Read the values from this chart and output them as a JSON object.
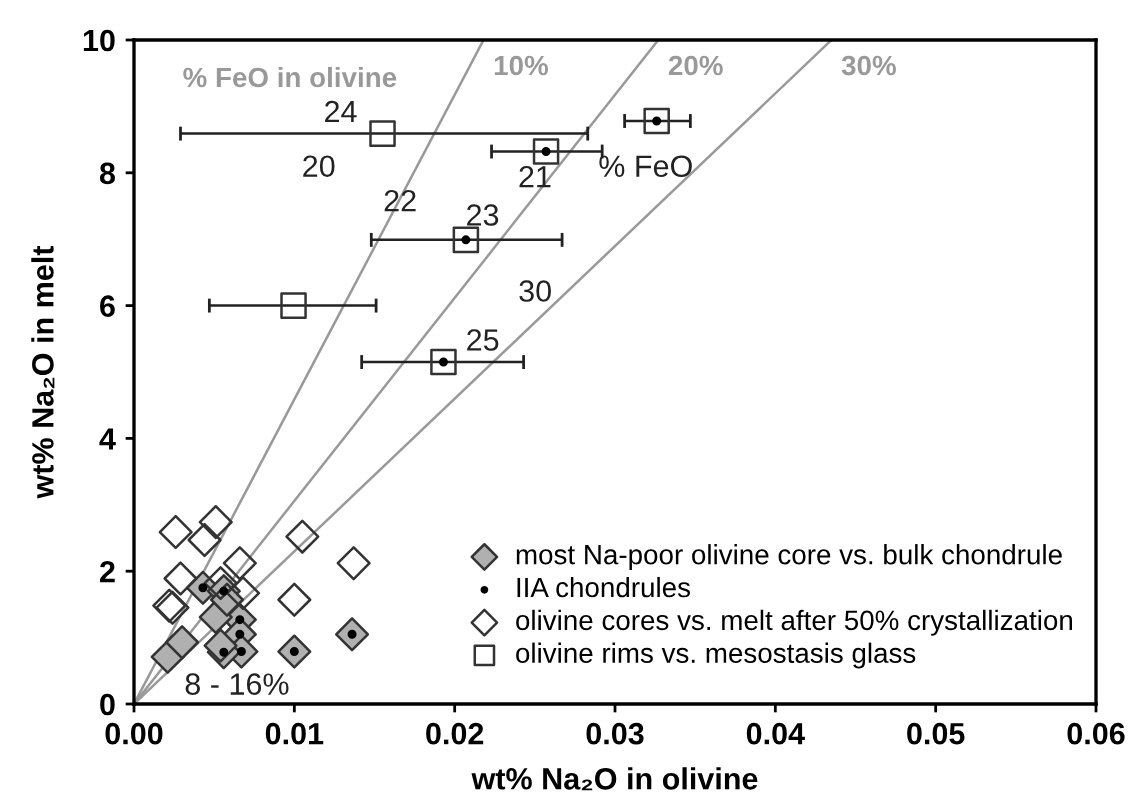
{
  "chart_data": {
    "type": "scatter",
    "xlabel": "wt% Na₂O in olivine",
    "ylabel": "wt% Na₂O in melt",
    "xlim": [
      0,
      0.06
    ],
    "ylim": [
      0,
      10
    ],
    "xticks": [
      {
        "value": 0,
        "label": "0.00"
      },
      {
        "value": 0.01,
        "label": "0.01"
      },
      {
        "value": 0.02,
        "label": "0.02"
      },
      {
        "value": 0.03,
        "label": "0.03"
      },
      {
        "value": 0.04,
        "label": "0.04"
      },
      {
        "value": 0.05,
        "label": "0.05"
      },
      {
        "value": 0.06,
        "label": "0.06"
      }
    ],
    "yticks": [
      0,
      2,
      4,
      6,
      8,
      10
    ],
    "grid": false,
    "legend": "bottom right",
    "series": [
      {
        "name": "most Na-poor olivine core vs. bulk chondrule",
        "color": "#b0b0b0",
        "marker": "diamond",
        "x": [
          0.0043,
          0.0066,
          0.0066,
          0.0067,
          0.0056,
          0.01,
          0.0136,
          0.0056,
          0.0021,
          0.003,
          0.0051,
          0.0054,
          0.0058
        ],
        "values": [
          1.75,
          1.27,
          1.05,
          0.79,
          0.78,
          0.79,
          1.05,
          1.7,
          0.71,
          0.93,
          1.31,
          0.88,
          1.57
        ]
      },
      {
        "name": "IIA chondrules",
        "color": "#000000",
        "marker": "circle",
        "x": [
          0.0043,
          0.0066,
          0.0066,
          0.0067,
          0.0056,
          0.01,
          0.0136,
          0.0056,
          0.0257,
          0.0326,
          0.0207,
          0.0193
        ],
        "values": [
          1.75,
          1.27,
          1.05,
          0.79,
          0.78,
          0.79,
          1.05,
          1.7,
          8.32,
          8.78,
          6.99,
          5.15
        ]
      },
      {
        "name": "olivine cores vs. melt after 50% crystallization",
        "color": "#333333",
        "marker": "diamond",
        "x": [
          0.0026,
          0.0044,
          0.0051,
          0.0105,
          0.0137,
          0.0029,
          0.0066,
          0.0022,
          0.0024,
          0.0054,
          0.0068,
          0.01
        ],
        "values": [
          2.59,
          2.47,
          2.74,
          2.52,
          2.12,
          1.89,
          2.12,
          1.48,
          1.45,
          1.82,
          1.67,
          1.57
        ]
      },
      {
        "name": "olivine rims vs. mesostasis glass",
        "color": "#333333",
        "marker": "square",
        "x": [
          0.0155,
          0.0257,
          0.0326,
          0.0207,
          0.00995,
          0.0193
        ],
        "values": [
          8.59,
          8.32,
          8.78,
          6.99,
          6.0,
          5.15
        ],
        "xerrors": [
          [
            0.0029,
            0.0283
          ],
          [
            0.0223,
            0.0292
          ],
          [
            0.0306,
            0.0347
          ],
          [
            0.0148,
            0.0267
          ],
          [
            0.0047,
            0.0151
          ],
          [
            0.0142,
            0.0243
          ]
        ]
      },
      {
        "type": "line",
        "name": "10%",
        "color": "#999999",
        "x": [
          0,
          0.0218
        ],
        "values": [
          0,
          10
        ],
        "marker": "none"
      },
      {
        "type": "line",
        "name": "20%",
        "color": "#999999",
        "x": [
          0,
          0.0327
        ],
        "values": [
          0,
          10
        ],
        "marker": "none"
      },
      {
        "type": "line",
        "name": "30%",
        "color": "#999999",
        "x": [
          0,
          0.0435
        ],
        "values": [
          0,
          10
        ],
        "marker": "none"
      }
    ],
    "annotations": [
      "% FeO in olivine",
      {
        "text": "24",
        "x": 0.0155,
        "y": 8.59
      },
      "20",
      {
        "text": "21",
        "x": 0.0257,
        "y": 8.32
      },
      "% FeO",
      {
        "text": "22",
        "x": 0.0166,
        "y": 7.54
      },
      {
        "text": "23",
        "x": 0.0207,
        "y": 6.99
      },
      "30",
      {
        "text": "25",
        "x": 0.0193,
        "y": 5.15
      },
      "8 - 16%"
    ]
  }
}
